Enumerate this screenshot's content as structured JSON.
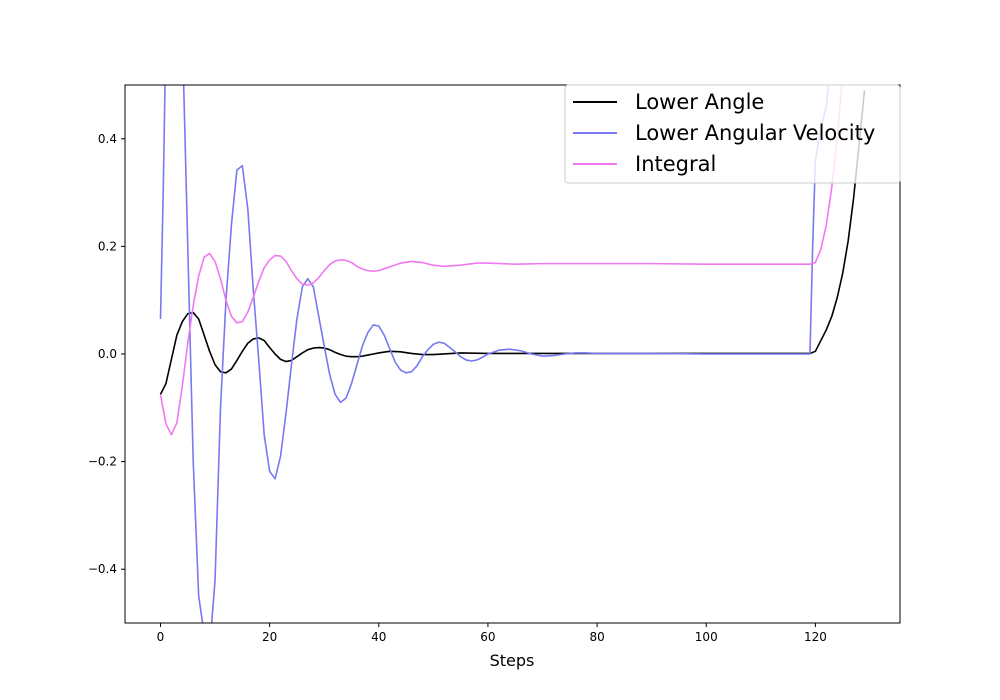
{
  "chart_data": {
    "type": "line",
    "title": "",
    "xlabel": "Steps",
    "ylabel": "",
    "xlim": [
      -6.5,
      135.5
    ],
    "ylim": [
      -0.5,
      0.5
    ],
    "xticks": [
      0,
      20,
      40,
      60,
      80,
      100,
      120
    ],
    "yticks": [
      -0.4,
      -0.2,
      0.0,
      0.2,
      0.4
    ],
    "xtick_labels": [
      "0",
      "20",
      "40",
      "60",
      "80",
      "100",
      "120"
    ],
    "ytick_labels": [
      "−0.4",
      "−0.2",
      "0.0",
      "0.2",
      "0.4"
    ],
    "grid": false,
    "legend_position": "top-right",
    "series": [
      {
        "name": "Lower Angle",
        "color": "#000000",
        "x": [
          0,
          1,
          2,
          3,
          4,
          5,
          6,
          7,
          8,
          9,
          10,
          11,
          12,
          13,
          14,
          15,
          16,
          17,
          18,
          19,
          20,
          21,
          22,
          23,
          24,
          25,
          26,
          27,
          28,
          29,
          30,
          31,
          32,
          33,
          34,
          35,
          36,
          37,
          38,
          39,
          40,
          42,
          44,
          46,
          48,
          50,
          55,
          60,
          65,
          70,
          80,
          90,
          100,
          110,
          119,
          120,
          121,
          122,
          123,
          124,
          125,
          126,
          127,
          128,
          129
        ],
        "y": [
          -0.075,
          -0.055,
          -0.01,
          0.035,
          0.06,
          0.075,
          0.077,
          0.065,
          0.035,
          0.005,
          -0.02,
          -0.033,
          -0.035,
          -0.028,
          -0.012,
          0.005,
          0.02,
          0.028,
          0.03,
          0.025,
          0.012,
          0.0,
          -0.01,
          -0.014,
          -0.012,
          -0.005,
          0.002,
          0.008,
          0.011,
          0.012,
          0.011,
          0.008,
          0.003,
          -0.001,
          -0.004,
          -0.005,
          -0.005,
          -0.004,
          -0.002,
          0.0,
          0.002,
          0.005,
          0.004,
          0.001,
          -0.001,
          -0.001,
          0.002,
          0.001,
          0.001,
          0.001,
          0.001,
          0.001,
          0.001,
          0.001,
          0.001,
          0.005,
          0.025,
          0.045,
          0.07,
          0.105,
          0.15,
          0.21,
          0.29,
          0.39,
          0.49
        ]
      },
      {
        "name": "Lower Angular Velocity",
        "color": "#7878f0",
        "x": [
          0,
          0.5,
          1,
          2,
          3,
          4,
          5,
          6,
          7,
          8,
          9,
          10,
          11,
          12,
          13,
          14,
          15,
          16,
          17,
          18,
          19,
          20,
          21,
          22,
          23,
          24,
          25,
          26,
          27,
          28,
          29,
          30,
          31,
          32,
          33,
          34,
          35,
          36,
          37,
          38,
          39,
          40,
          41,
          42,
          43,
          44,
          45,
          46,
          47,
          48,
          49,
          50,
          51,
          52,
          53,
          54,
          55,
          56,
          57,
          58,
          59,
          60,
          62,
          64,
          66,
          68,
          70,
          72,
          74,
          76,
          78,
          80,
          90,
          100,
          110,
          119,
          119.5,
          120,
          121,
          122,
          123
        ],
        "y": [
          0.065,
          0.3,
          0.6,
          0.8,
          0.9,
          0.6,
          0.2,
          -0.2,
          -0.45,
          -0.52,
          -0.55,
          -0.42,
          -0.1,
          0.1,
          0.24,
          0.342,
          0.35,
          0.27,
          0.12,
          -0.01,
          -0.15,
          -0.218,
          -0.232,
          -0.19,
          -0.11,
          -0.02,
          0.065,
          0.125,
          0.14,
          0.125,
          0.07,
          0.015,
          -0.038,
          -0.075,
          -0.09,
          -0.082,
          -0.055,
          -0.02,
          0.015,
          0.04,
          0.054,
          0.052,
          0.035,
          0.01,
          -0.015,
          -0.03,
          -0.035,
          -0.033,
          -0.022,
          -0.005,
          0.008,
          0.018,
          0.022,
          0.02,
          0.012,
          0.004,
          -0.005,
          -0.011,
          -0.013,
          -0.011,
          -0.006,
          0.0,
          0.007,
          0.009,
          0.006,
          0.0,
          -0.004,
          -0.003,
          0.0,
          0.002,
          0.002,
          0.001,
          0.001,
          0.0,
          0.0,
          0.0,
          0.2,
          0.36,
          0.42,
          0.46,
          0.56
        ]
      },
      {
        "name": "Integral",
        "color": "#f078f0",
        "x": [
          0,
          1,
          2,
          3,
          4,
          5,
          6,
          7,
          8,
          9,
          10,
          11,
          12,
          13,
          14,
          15,
          16,
          17,
          18,
          19,
          20,
          21,
          22,
          23,
          24,
          25,
          26,
          27,
          28,
          29,
          30,
          31,
          32,
          33,
          34,
          35,
          36,
          37,
          38,
          39,
          40,
          42,
          44,
          46,
          48,
          50,
          52,
          55,
          58,
          60,
          65,
          70,
          80,
          90,
          100,
          110,
          119,
          120,
          121,
          122,
          123,
          124,
          125
        ],
        "y": [
          -0.075,
          -0.13,
          -0.15,
          -0.128,
          -0.06,
          0.02,
          0.09,
          0.145,
          0.18,
          0.187,
          0.172,
          0.14,
          0.1,
          0.07,
          0.058,
          0.06,
          0.078,
          0.105,
          0.135,
          0.16,
          0.175,
          0.183,
          0.182,
          0.172,
          0.155,
          0.14,
          0.13,
          0.128,
          0.132,
          0.142,
          0.155,
          0.166,
          0.173,
          0.175,
          0.174,
          0.17,
          0.163,
          0.158,
          0.155,
          0.154,
          0.155,
          0.162,
          0.169,
          0.172,
          0.17,
          0.165,
          0.163,
          0.165,
          0.169,
          0.169,
          0.167,
          0.168,
          0.168,
          0.168,
          0.167,
          0.167,
          0.167,
          0.17,
          0.195,
          0.24,
          0.31,
          0.4,
          0.52
        ]
      }
    ]
  }
}
